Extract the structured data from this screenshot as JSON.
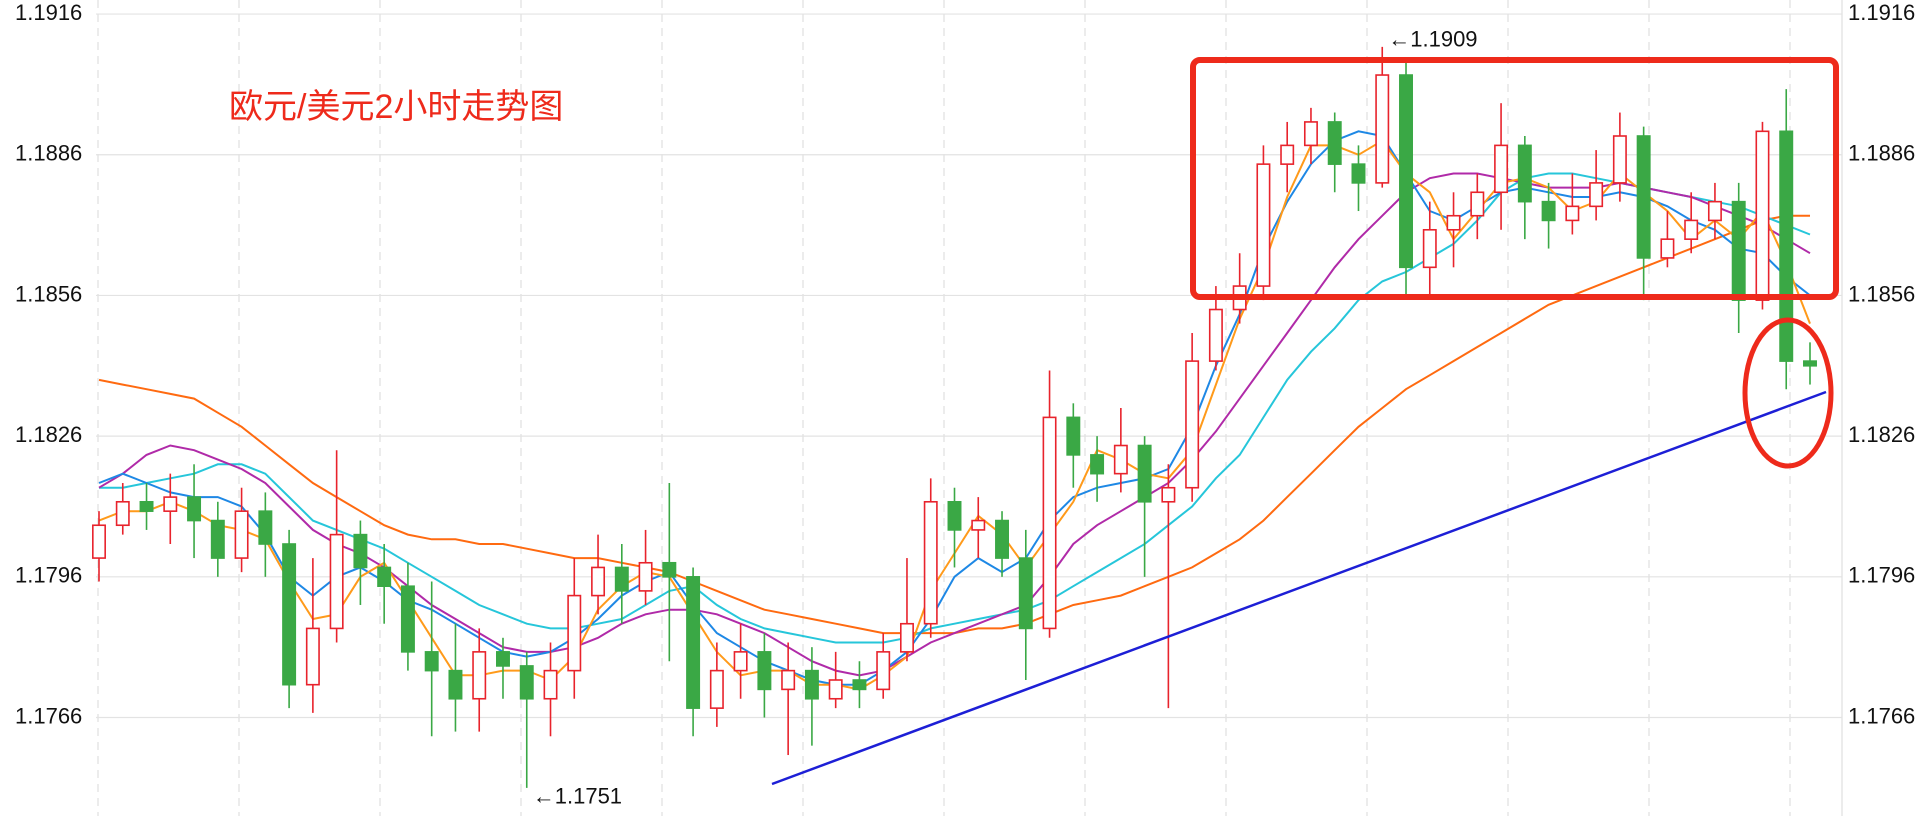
{
  "chart_data": {
    "type": "candlestick",
    "title": "欧元/美元2小时走势图",
    "ylim": [
      1.1745,
      1.1919
    ],
    "yticks": [
      1.1766,
      1.1796,
      1.1826,
      1.1856,
      1.1886,
      1.1916
    ],
    "grid": true,
    "xgrid": true,
    "up_color": "#e8232c",
    "down_color": "#3aa845",
    "open": [
      1.18,
      1.1807,
      1.1812,
      1.181,
      1.1813,
      1.1808,
      1.18,
      1.181,
      1.1803,
      1.1773,
      1.1785,
      1.1805,
      1.1798,
      1.1794,
      1.178,
      1.1776,
      1.177,
      1.178,
      1.1777,
      1.177,
      1.1776,
      1.1792,
      1.1798,
      1.1793,
      1.1799,
      1.1796,
      1.1768,
      1.1776,
      1.178,
      1.1772,
      1.1776,
      1.177,
      1.1774,
      1.1772,
      1.178,
      1.1786,
      1.1812,
      1.1806,
      1.1808,
      1.18,
      1.1785,
      1.183,
      1.1822,
      1.1818,
      1.1824,
      1.1812,
      1.1815,
      1.1842,
      1.1853,
      1.1858,
      1.1884,
      1.1888,
      1.1893,
      1.1884,
      1.188,
      1.1903,
      1.1862,
      1.187,
      1.1873,
      1.1878,
      1.1888,
      1.1876,
      1.1872,
      1.1875,
      1.188,
      1.189,
      1.1864,
      1.1868,
      1.1872,
      1.1876,
      1.1855,
      1.1891,
      1.1842
    ],
    "high": [
      1.181,
      1.1816,
      1.1816,
      1.1818,
      1.182,
      1.1812,
      1.1815,
      1.1814,
      1.1806,
      1.18,
      1.1823,
      1.1808,
      1.1803,
      1.1799,
      1.1795,
      1.1786,
      1.1785,
      1.1783,
      1.178,
      1.1782,
      1.18,
      1.1805,
      1.1803,
      1.1806,
      1.1816,
      1.1798,
      1.1782,
      1.1786,
      1.1784,
      1.1782,
      1.1781,
      1.178,
      1.1778,
      1.1784,
      1.18,
      1.1817,
      1.1815,
      1.1813,
      1.181,
      1.1806,
      1.184,
      1.1833,
      1.1826,
      1.1832,
      1.1826,
      1.182,
      1.1848,
      1.1858,
      1.1865,
      1.1888,
      1.1893,
      1.1896,
      1.1895,
      1.1888,
      1.1909,
      1.1906,
      1.1876,
      1.1878,
      1.1882,
      1.1897,
      1.189,
      1.188,
      1.1882,
      1.1887,
      1.1895,
      1.1892,
      1.1874,
      1.1878,
      1.188,
      1.188,
      1.1893,
      1.19,
      1.1846
    ],
    "low": [
      1.1795,
      1.1805,
      1.1806,
      1.1803,
      1.18,
      1.1796,
      1.1797,
      1.1796,
      1.1768,
      1.1767,
      1.1782,
      1.179,
      1.1786,
      1.1776,
      1.1762,
      1.1763,
      1.1763,
      1.177,
      1.1751,
      1.1762,
      1.177,
      1.1788,
      1.1786,
      1.179,
      1.1778,
      1.1762,
      1.1764,
      1.177,
      1.1766,
      1.1758,
      1.176,
      1.1768,
      1.1768,
      1.177,
      1.1778,
      1.1783,
      1.1798,
      1.18,
      1.1796,
      1.1774,
      1.1783,
      1.1815,
      1.1812,
      1.1814,
      1.1796,
      1.1768,
      1.1812,
      1.184,
      1.185,
      1.1855,
      1.1878,
      1.1884,
      1.1878,
      1.1874,
      1.1879,
      1.1856,
      1.1856,
      1.1862,
      1.1868,
      1.187,
      1.1868,
      1.1866,
      1.1869,
      1.1872,
      1.1876,
      1.1855,
      1.1862,
      1.1865,
      1.1868,
      1.1848,
      1.1853,
      1.1836,
      1.1837
    ],
    "close": [
      1.1807,
      1.1812,
      1.181,
      1.1813,
      1.1808,
      1.18,
      1.181,
      1.1803,
      1.1773,
      1.1785,
      1.1805,
      1.1798,
      1.1794,
      1.178,
      1.1776,
      1.177,
      1.178,
      1.1777,
      1.177,
      1.1776,
      1.1792,
      1.1798,
      1.1793,
      1.1799,
      1.1796,
      1.1768,
      1.1776,
      1.178,
      1.1772,
      1.1776,
      1.177,
      1.1774,
      1.1772,
      1.178,
      1.1786,
      1.1812,
      1.1806,
      1.1808,
      1.18,
      1.1785,
      1.183,
      1.1822,
      1.1818,
      1.1824,
      1.1812,
      1.1815,
      1.1842,
      1.1853,
      1.1858,
      1.1884,
      1.1888,
      1.1893,
      1.1884,
      1.188,
      1.1903,
      1.1862,
      1.187,
      1.1873,
      1.1878,
      1.1888,
      1.1876,
      1.1872,
      1.1875,
      1.188,
      1.189,
      1.1864,
      1.1868,
      1.1872,
      1.1876,
      1.1855,
      1.1891,
      1.1842,
      1.1841
    ],
    "lines": [
      {
        "color": "#ff6a10",
        "values": [
          1.1838,
          1.1837,
          1.1836,
          1.1835,
          1.1834,
          1.1831,
          1.1828,
          1.1824,
          1.182,
          1.1816,
          1.1813,
          1.181,
          1.1807,
          1.1805,
          1.1804,
          1.1804,
          1.1803,
          1.1803,
          1.1802,
          1.1801,
          1.18,
          1.18,
          1.1799,
          1.1798,
          1.1797,
          1.1795,
          1.1793,
          1.1791,
          1.1789,
          1.1788,
          1.1787,
          1.1786,
          1.1785,
          1.1784,
          1.1784,
          1.1784,
          1.1784,
          1.1785,
          1.1785,
          1.1786,
          1.1788,
          1.179,
          1.1791,
          1.1792,
          1.1794,
          1.1796,
          1.1798,
          1.1801,
          1.1804,
          1.1808,
          1.1813,
          1.1818,
          1.1823,
          1.1828,
          1.1832,
          1.1836,
          1.1839,
          1.1842,
          1.1845,
          1.1848,
          1.1851,
          1.1854,
          1.1856,
          1.1858,
          1.186,
          1.1862,
          1.1864,
          1.1866,
          1.1868,
          1.187,
          1.1872,
          1.1873,
          1.1873
        ]
      },
      {
        "color": "#26c6da",
        "values": [
          1.1815,
          1.1815,
          1.1816,
          1.1817,
          1.1818,
          1.182,
          1.182,
          1.1818,
          1.1813,
          1.1808,
          1.1806,
          1.1804,
          1.1802,
          1.1799,
          1.1796,
          1.1793,
          1.179,
          1.1788,
          1.1786,
          1.1785,
          1.1785,
          1.1786,
          1.1787,
          1.179,
          1.1793,
          1.1794,
          1.179,
          1.1787,
          1.1785,
          1.1784,
          1.1783,
          1.1782,
          1.1782,
          1.1782,
          1.1783,
          1.1785,
          1.1786,
          1.1787,
          1.1788,
          1.1789,
          1.1791,
          1.1794,
          1.1797,
          1.18,
          1.1803,
          1.1807,
          1.1811,
          1.1817,
          1.1822,
          1.183,
          1.1838,
          1.1844,
          1.1849,
          1.1855,
          1.1859,
          1.1861,
          1.1864,
          1.1867,
          1.1872,
          1.1878,
          1.1881,
          1.1882,
          1.1882,
          1.1881,
          1.188,
          1.1879,
          1.1878,
          1.1877,
          1.1876,
          1.1875,
          1.1873,
          1.1871,
          1.1869
        ]
      },
      {
        "color": "#b02aa8",
        "values": [
          1.1815,
          1.1818,
          1.1822,
          1.1824,
          1.1823,
          1.1821,
          1.1819,
          1.1816,
          1.1811,
          1.1806,
          1.1803,
          1.1801,
          1.1798,
          1.1794,
          1.179,
          1.1787,
          1.1784,
          1.1781,
          1.178,
          1.178,
          1.1781,
          1.1783,
          1.1786,
          1.1788,
          1.1789,
          1.1789,
          1.1788,
          1.1786,
          1.1784,
          1.1781,
          1.1778,
          1.1776,
          1.1775,
          1.1776,
          1.1779,
          1.1782,
          1.1784,
          1.1786,
          1.1788,
          1.179,
          1.1796,
          1.1803,
          1.1807,
          1.181,
          1.1813,
          1.1816,
          1.1821,
          1.1827,
          1.1834,
          1.1841,
          1.1848,
          1.1855,
          1.1862,
          1.1868,
          1.1873,
          1.1878,
          1.1881,
          1.1882,
          1.1882,
          1.1881,
          1.188,
          1.1879,
          1.1879,
          1.1879,
          1.188,
          1.1879,
          1.1878,
          1.1877,
          1.1875,
          1.1873,
          1.1871,
          1.1868,
          1.1865
        ]
      },
      {
        "color": "#1e88e5",
        "values": [
          1.1816,
          1.1818,
          1.1816,
          1.1814,
          1.1813,
          1.1813,
          1.1811,
          1.1805,
          1.1796,
          1.1792,
          1.1796,
          1.1798,
          1.1795,
          1.1791,
          1.1789,
          1.1786,
          1.1783,
          1.178,
          1.1779,
          1.178,
          1.1783,
          1.1787,
          1.1792,
          1.1795,
          1.1797,
          1.179,
          1.1784,
          1.1781,
          1.1778,
          1.1776,
          1.1774,
          1.1773,
          1.1773,
          1.1776,
          1.178,
          1.1787,
          1.1796,
          1.18,
          1.1797,
          1.18,
          1.1808,
          1.1813,
          1.1815,
          1.1816,
          1.1817,
          1.1819,
          1.1828,
          1.1841,
          1.1852,
          1.1866,
          1.1876,
          1.1884,
          1.1889,
          1.1891,
          1.189,
          1.1882,
          1.1874,
          1.1872,
          1.1875,
          1.1878,
          1.1879,
          1.1878,
          1.1877,
          1.1877,
          1.1878,
          1.1877,
          1.1875,
          1.1872,
          1.187,
          1.1866,
          1.1865,
          1.186,
          1.1856
        ]
      },
      {
        "color": "#ff9a1a",
        "values": [
          1.1808,
          1.181,
          1.181,
          1.1812,
          1.181,
          1.1807,
          1.1806,
          1.1804,
          1.1795,
          1.1787,
          1.1788,
          1.1796,
          1.1799,
          1.1791,
          1.1783,
          1.1775,
          1.1775,
          1.1776,
          1.1776,
          1.1774,
          1.1779,
          1.1789,
          1.1794,
          1.1797,
          1.1796,
          1.1788,
          1.178,
          1.1775,
          1.1776,
          1.1776,
          1.1773,
          1.1773,
          1.1772,
          1.1775,
          1.1779,
          1.1793,
          1.1801,
          1.1809,
          1.1805,
          1.1798,
          1.1805,
          1.1812,
          1.1823,
          1.1821,
          1.1818,
          1.1817,
          1.1823,
          1.1837,
          1.1851,
          1.1862,
          1.1877,
          1.1888,
          1.1888,
          1.1886,
          1.1889,
          1.1882,
          1.1878,
          1.1868,
          1.1874,
          1.188,
          1.1881,
          1.1879,
          1.1874,
          1.1876,
          1.1882,
          1.1878,
          1.1874,
          1.1868,
          1.1872,
          1.1868,
          1.1874,
          1.1863,
          1.185
        ]
      }
    ],
    "annotations": [
      {
        "value": 1.1909,
        "label": "←1.1909"
      },
      {
        "value": 1.1751,
        "label": "←1.1751"
      }
    ]
  }
}
